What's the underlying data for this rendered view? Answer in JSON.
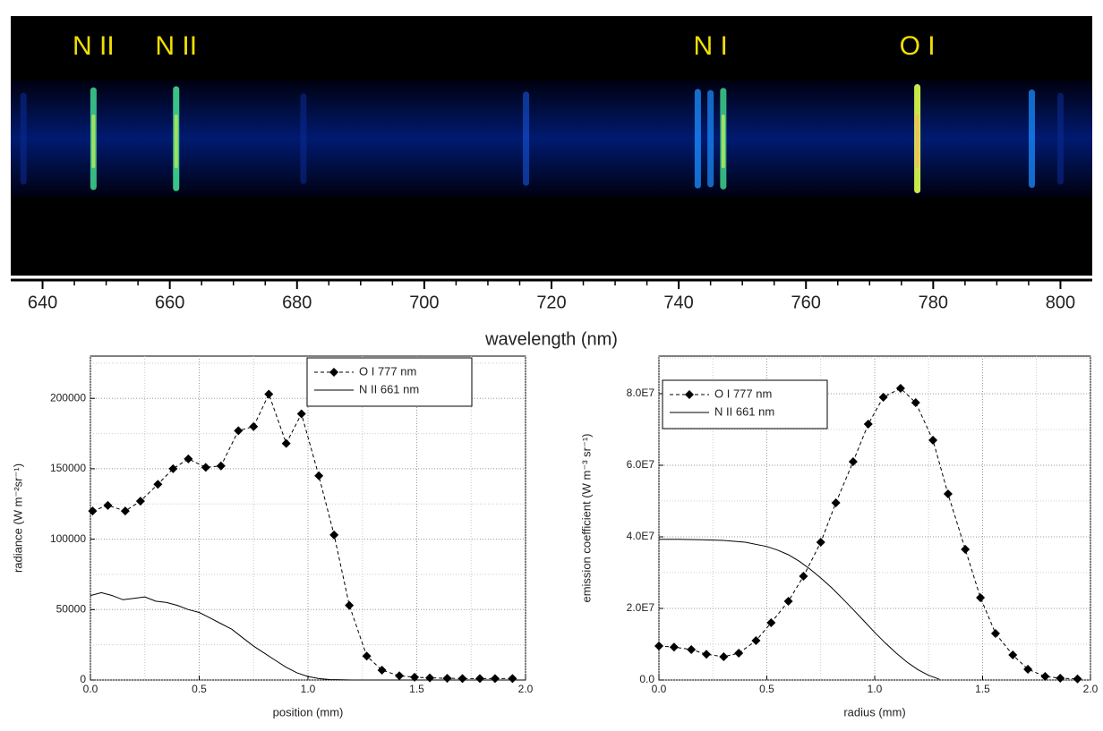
{
  "chart_data": [
    {
      "type": "spectrum",
      "xlabel": "wavelength (nm)",
      "xlim": [
        635,
        805
      ],
      "xticks": [
        640,
        660,
        680,
        700,
        720,
        740,
        760,
        780,
        800
      ],
      "xminorticks": [
        645,
        650,
        655,
        665,
        670,
        675,
        685,
        690,
        695,
        705,
        710,
        715,
        725,
        730,
        735,
        745,
        750,
        755,
        765,
        770,
        775,
        785,
        790,
        795
      ],
      "x": [
        637,
        648,
        661,
        681,
        716,
        743,
        745,
        747,
        777.5,
        795.5,
        800
      ],
      "values": [
        0.2,
        0.7,
        0.8,
        0.15,
        0.3,
        0.55,
        0.45,
        0.65,
        1.0,
        0.5,
        0.2
      ],
      "annotations": [
        {
          "text": "N II",
          "x": 648
        },
        {
          "text": "N II",
          "x": 661
        },
        {
          "text": "N I",
          "x": 745
        },
        {
          "text": "O I",
          "x": 777.5
        }
      ]
    },
    {
      "type": "line",
      "xlabel": "position (mm)",
      "ylabel": "radiance (W m⁻²sr⁻¹)",
      "xlim": [
        0,
        2
      ],
      "xticks": [
        {
          "value": 0,
          "label": "0.0"
        },
        0.5,
        {
          "value": 1,
          "label": "1.0"
        },
        1.5,
        {
          "value": 2,
          "label": "2.0"
        }
      ],
      "xminorticks": [
        0.25,
        0.75,
        1.25,
        1.75
      ],
      "ylim": [
        0,
        230000
      ],
      "yticks": [
        0,
        50000,
        100000,
        150000,
        200000
      ],
      "yminorticks": [
        25000,
        75000,
        125000,
        175000,
        225000
      ],
      "grid": true,
      "legend": "upper-right",
      "series": [
        {
          "name": "O I 777 nm",
          "color": "#000000",
          "dashed": true,
          "marker": "diamond",
          "x": [
            0.01,
            0.08,
            0.16,
            0.23,
            0.31,
            0.38,
            0.45,
            0.53,
            0.6,
            0.68,
            0.75,
            0.82,
            0.9,
            0.97,
            1.05,
            1.12,
            1.19,
            1.27,
            1.34,
            1.42,
            1.49,
            1.56,
            1.64,
            1.71,
            1.79,
            1.86,
            1.94
          ],
          "values": [
            120000,
            124000,
            120000,
            127000,
            139000,
            150000,
            157000,
            151000,
            152000,
            177000,
            180000,
            203000,
            168000,
            189000,
            145000,
            103000,
            53000,
            17000,
            7000,
            3000,
            2000,
            1500,
            1200,
            1000,
            1000,
            1000,
            1000
          ]
        },
        {
          "name": "N II 661 nm",
          "color": "#000000",
          "dashed": false,
          "marker": "none",
          "x": [
            0,
            0.05,
            0.1,
            0.15,
            0.2,
            0.25,
            0.3,
            0.35,
            0.4,
            0.45,
            0.5,
            0.55,
            0.6,
            0.65,
            0.7,
            0.75,
            0.8,
            0.85,
            0.9,
            0.95,
            1.0,
            1.05,
            1.1,
            1.2,
            2.0
          ],
          "values": [
            60000,
            62000,
            60000,
            57000,
            58000,
            59000,
            56000,
            55000,
            53000,
            50000,
            48000,
            44000,
            40000,
            36000,
            30000,
            24000,
            19000,
            14000,
            9000,
            5000,
            2500,
            1000,
            300,
            0,
            0
          ]
        }
      ]
    },
    {
      "type": "line",
      "xlabel": "radius (mm)",
      "ylabel": "emission coefficient (W m⁻³ sr⁻¹)",
      "xlim": [
        0,
        2
      ],
      "xticks": [
        {
          "value": 0,
          "label": "0.0"
        },
        0.5,
        {
          "value": 1,
          "label": "1.0"
        },
        1.5,
        {
          "value": 2,
          "label": "2.0"
        }
      ],
      "xminorticks": [
        0.25,
        0.75,
        1.25,
        1.75
      ],
      "ylim": [
        0,
        90500000
      ],
      "yticks": [
        {
          "value": 0,
          "label": "0.0"
        },
        {
          "value": 20000000,
          "label": "2.0E7"
        },
        {
          "value": 40000000,
          "label": "4.0E7"
        },
        {
          "value": 60000000,
          "label": "6.0E7"
        },
        {
          "value": 80000000,
          "label": "8.0E7"
        }
      ],
      "yminorticks": [
        10000000,
        30000000,
        50000000,
        70000000,
        90000000
      ],
      "grid": true,
      "legend": "upper-left",
      "series": [
        {
          "name": "O I 777 nm",
          "color": "#000000",
          "dashed": true,
          "marker": "diamond",
          "x": [
            0,
            0.07,
            0.15,
            0.22,
            0.3,
            0.37,
            0.45,
            0.52,
            0.6,
            0.67,
            0.75,
            0.82,
            0.9,
            0.97,
            1.04,
            1.12,
            1.19,
            1.27,
            1.34,
            1.42,
            1.49,
            1.56,
            1.64,
            1.71,
            1.79,
            1.86,
            1.94
          ],
          "values": [
            9500000,
            9200000,
            8500000,
            7200000,
            6500000,
            7500000,
            11000000,
            16000000,
            22000000,
            29000000,
            38500000,
            49500000,
            61000000,
            71500000,
            79000000,
            81500000,
            77500000,
            67000000,
            52000000,
            36500000,
            23000000,
            13000000,
            7000000,
            3000000,
            1000000,
            500000,
            300000
          ]
        },
        {
          "name": "N II 661 nm",
          "color": "#000000",
          "dashed": false,
          "marker": "none",
          "x": [
            0,
            0.1,
            0.2,
            0.3,
            0.4,
            0.5,
            0.55,
            0.6,
            0.65,
            0.7,
            0.75,
            0.8,
            0.85,
            0.9,
            0.95,
            1.0,
            1.05,
            1.1,
            1.15,
            1.2,
            1.25,
            1.3
          ],
          "values": [
            39300000,
            39300000,
            39200000,
            39000000,
            38500000,
            37300000,
            36300000,
            35000000,
            33200000,
            31000000,
            28500000,
            25800000,
            22800000,
            19700000,
            16500000,
            13300000,
            10300000,
            7500000,
            5000000,
            2900000,
            1300000,
            200000
          ]
        }
      ]
    }
  ]
}
